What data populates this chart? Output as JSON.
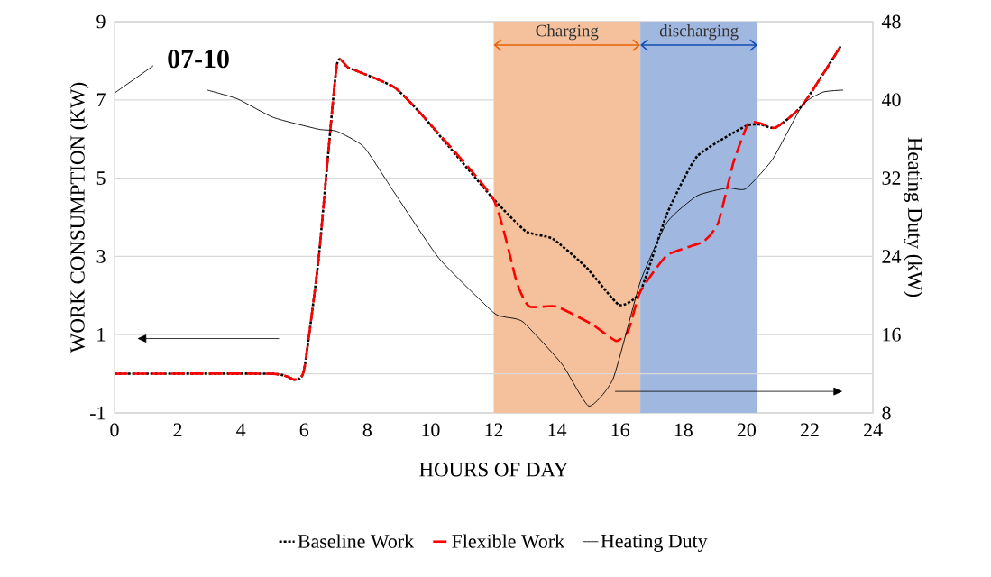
{
  "chart_data": {
    "type": "line",
    "xlabel": "HOURS OF DAY",
    "ylabel": "WORK CONSUMPTION (KW)",
    "y2label": "Heating Duty (kW)",
    "annotations": [
      "07-10"
    ],
    "xlim": [
      0,
      24
    ],
    "xticks": [
      0,
      2,
      4,
      6,
      8,
      10,
      12,
      14,
      16,
      18,
      20,
      22,
      24
    ],
    "ylim": [
      -1,
      9
    ],
    "yticks": [
      -1,
      1,
      3,
      5,
      7,
      9
    ],
    "y2lim": [
      8,
      48
    ],
    "y2ticks": [
      8,
      16,
      24,
      32,
      40,
      48
    ],
    "grid": "y",
    "legend": "bottom",
    "ref_lines": [
      {
        "axis": "y",
        "value": 0,
        "color": "#d9d9d9"
      }
    ],
    "bands": [
      {
        "axis": "x",
        "from": 12,
        "to": 16.64,
        "label": "Charging",
        "color": "#f5c09c"
      },
      {
        "axis": "x",
        "from": 16.64,
        "to": 20.35,
        "label": "discharging",
        "color": "#a0b8e0"
      }
    ],
    "series": [
      {
        "name": "Baseline Work",
        "color": "#000000",
        "line_style": "dotted",
        "x": [
          0,
          5,
          5.7,
          6,
          6.46,
          7.03,
          7.41,
          8.84,
          9.79,
          11.98,
          13.02,
          13.87,
          14.93,
          15.97,
          16.64,
          17.49,
          18.44,
          19.97,
          20.44,
          20.92,
          21.77,
          23
        ],
        "values": [
          0,
          0,
          -0.15,
          0.1,
          2.95,
          7.86,
          7.82,
          7.33,
          6.56,
          4.48,
          3.64,
          3.45,
          2.72,
          1.76,
          2.1,
          4.1,
          5.56,
          6.33,
          6.37,
          6.29,
          6.86,
          8.4
        ]
      },
      {
        "name": "Flexible Work",
        "color": "#ff0000",
        "line_style": "dashed",
        "x": [
          0,
          5,
          5.7,
          6,
          6.46,
          7.03,
          7.41,
          8.84,
          9.79,
          11.98,
          12.73,
          13.12,
          13.98,
          15.12,
          15.87,
          16.26,
          16.64,
          17.49,
          18.64,
          19.11,
          19.59,
          20.06,
          20.44,
          20.92,
          21.77,
          23
        ],
        "values": [
          0,
          0,
          -0.15,
          0.1,
          2.95,
          7.86,
          7.82,
          7.33,
          6.56,
          4.48,
          2.34,
          1.72,
          1.72,
          1.26,
          0.84,
          1.1,
          2.1,
          3.03,
          3.38,
          3.87,
          5.41,
          6.4,
          6.4,
          6.29,
          6.86,
          8.4
        ]
      },
      {
        "name": "Heating Duty",
        "color": "#000000",
        "line_style": "solid",
        "axis": "y2",
        "x": [
          0,
          0.66,
          1.23,
          2,
          2.94,
          3.89,
          5.03,
          6.46,
          7.03,
          7.89,
          8.84,
          10.27,
          11.98,
          12.36,
          12.93,
          14.16,
          15.01,
          15.78,
          16.64,
          17.49,
          18.44,
          19.4,
          19.97,
          20.82,
          21.78,
          22.43,
          23.06
        ],
        "values": [
          40.7,
          42.2,
          43.5,
          null,
          41.0,
          40.1,
          38.2,
          37.0,
          36.8,
          35.2,
          30.6,
          23.8,
          18.3,
          17.8,
          17.3,
          13.0,
          8.7,
          11.5,
          21.4,
          27.5,
          30.2,
          31.0,
          30.9,
          33.9,
          39.5,
          40.8,
          41.0
        ]
      }
    ]
  }
}
